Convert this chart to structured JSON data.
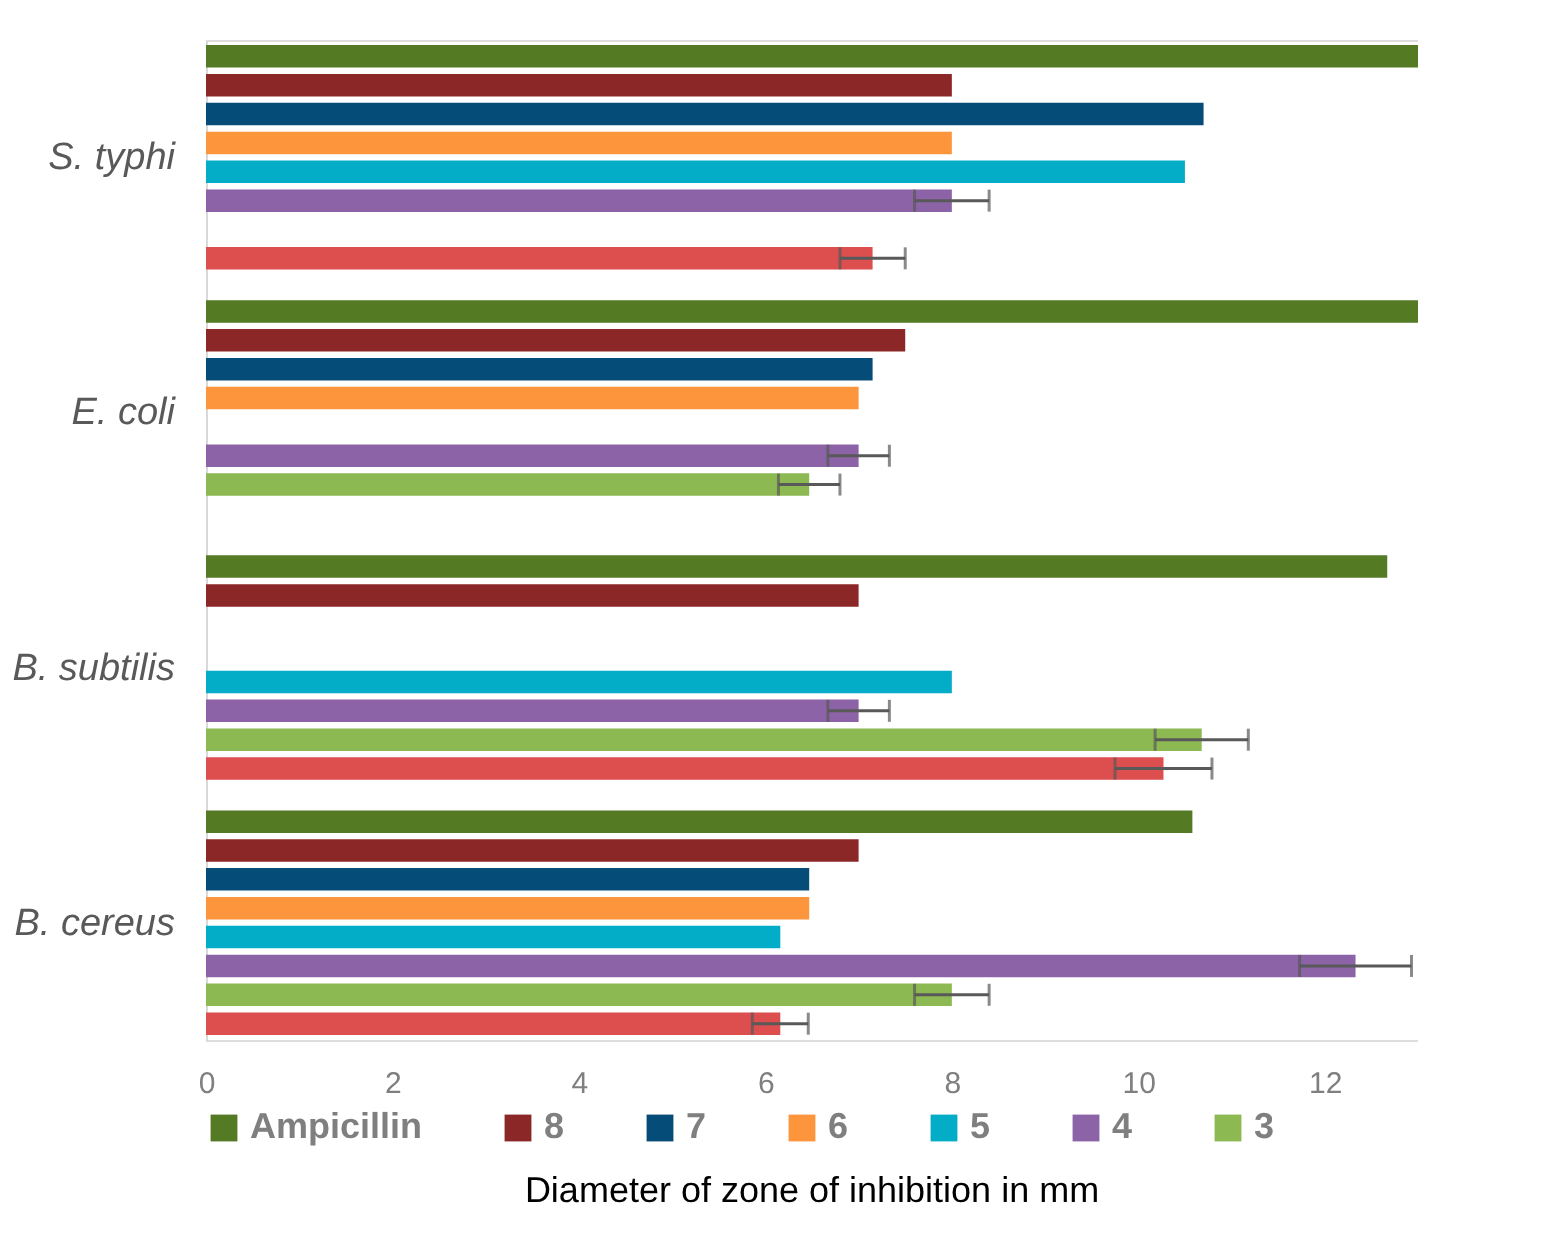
{
  "chart_data": {
    "type": "bar",
    "orientation": "horizontal",
    "xlabel": "Diameter of zone of inhibition in mm",
    "categories": [
      "S. typhi",
      "E. coli",
      "B. subtilis",
      "B. cereus"
    ],
    "xlim": [
      0,
      13
    ],
    "xticks": [
      0,
      2,
      4,
      6,
      8,
      10,
      12
    ],
    "grid": false,
    "legend": "bottom",
    "series": [
      {
        "name": "Ampicillin",
        "color": "#547a24",
        "values": [
          13,
          13,
          12.67,
          10.58
        ]
      },
      {
        "name": "8",
        "color": "#8b2726",
        "values": [
          8.0,
          7.5,
          7.0,
          7.0
        ]
      },
      {
        "name": "7",
        "color": "#054d78",
        "values": [
          10.7,
          7.15,
          null,
          6.47
        ]
      },
      {
        "name": "6",
        "color": "#fd953c",
        "values": [
          8.0,
          7.0,
          null,
          6.47
        ]
      },
      {
        "name": "5",
        "color": "#03adc8",
        "values": [
          10.5,
          null,
          8.0,
          6.16
        ]
      },
      {
        "name": "4",
        "color": "#8b63a6",
        "values": [
          8.0,
          7.0,
          7.0,
          12.33
        ],
        "errors": [
          0.4,
          0.33,
          0.33,
          0.6
        ]
      },
      {
        "name": "3",
        "color": "#8db952",
        "values": [
          null,
          6.47,
          10.68,
          8.0
        ],
        "errors": [
          null,
          0.33,
          0.5,
          0.4
        ]
      },
      {
        "color": "#dc4f4e",
        "values": [
          7.15,
          null,
          10.27,
          6.16
        ],
        "errors": [
          0.35,
          null,
          0.52,
          0.3
        ]
      }
    ]
  }
}
